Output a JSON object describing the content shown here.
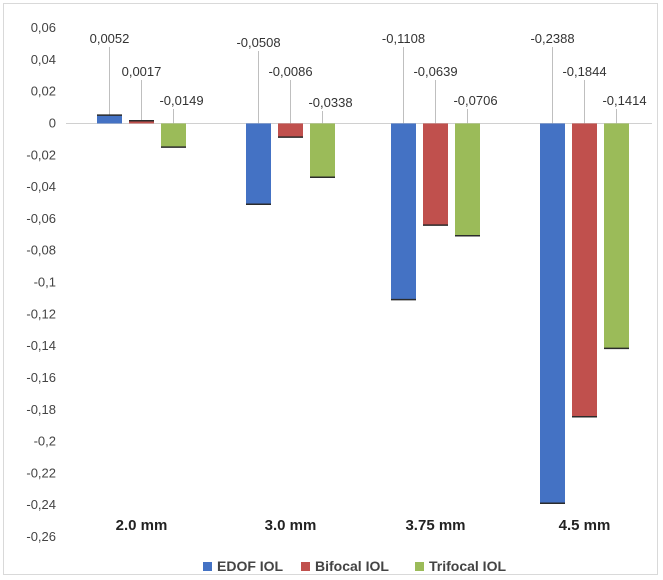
{
  "chart_data": {
    "type": "bar",
    "categories": [
      "2.0 mm",
      "3.0 mm",
      "3.75 mm",
      "4.5 mm"
    ],
    "series": [
      {
        "name": "EDOF IOL",
        "values": [
          0.0052,
          -0.0508,
          -0.1108,
          -0.2388
        ],
        "labels": [
          "0,0052",
          "-0,0508",
          "-0,1108",
          "-0,2388"
        ]
      },
      {
        "name": "Bifocal IOL",
        "values": [
          0.0017,
          -0.0086,
          -0.0639,
          -0.1844
        ],
        "labels": [
          "0,0017",
          "-0,0086",
          "-0,0639",
          "-0,1844"
        ]
      },
      {
        "name": "Trifocal IOL",
        "values": [
          -0.0149,
          -0.0338,
          -0.0706,
          -0.1414
        ],
        "labels": [
          "-0,0149",
          "-0,0338",
          "-0,0706",
          "-0,1414"
        ]
      }
    ],
    "yticks": [
      "0,06",
      "0,04",
      "0,02",
      "0",
      "-0,02",
      "-0,04",
      "-0,06",
      "-0,08",
      "-0,1",
      "-0,12",
      "-0,14",
      "-0,16",
      "-0,18",
      "-0,2",
      "-0,22",
      "-0,24",
      "-0,26"
    ],
    "ylim": [
      -0.26,
      0.06
    ],
    "grid": false,
    "legend_position": "bottom",
    "colors": [
      "#4472c4",
      "#c0504d",
      "#9bbb59"
    ]
  }
}
